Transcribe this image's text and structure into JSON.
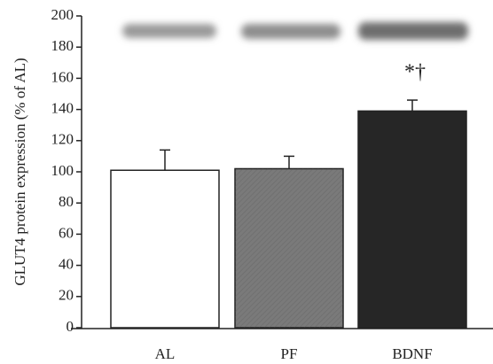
{
  "chart_data": {
    "type": "bar",
    "y_label": "GLUT4 protein expression (% of AL)",
    "categories": [
      "AL",
      "PF",
      "BDNF"
    ],
    "values": [
      101,
      102,
      139
    ],
    "errors": [
      13,
      8,
      7
    ],
    "colors": [
      "#ffffff",
      "#7a7a7a",
      "#262626"
    ],
    "annotation": "*†",
    "ylim": [
      0,
      200
    ],
    "yticks": [
      0,
      20,
      40,
      60,
      80,
      100,
      120,
      140,
      160,
      180,
      200
    ],
    "grid": false
  }
}
